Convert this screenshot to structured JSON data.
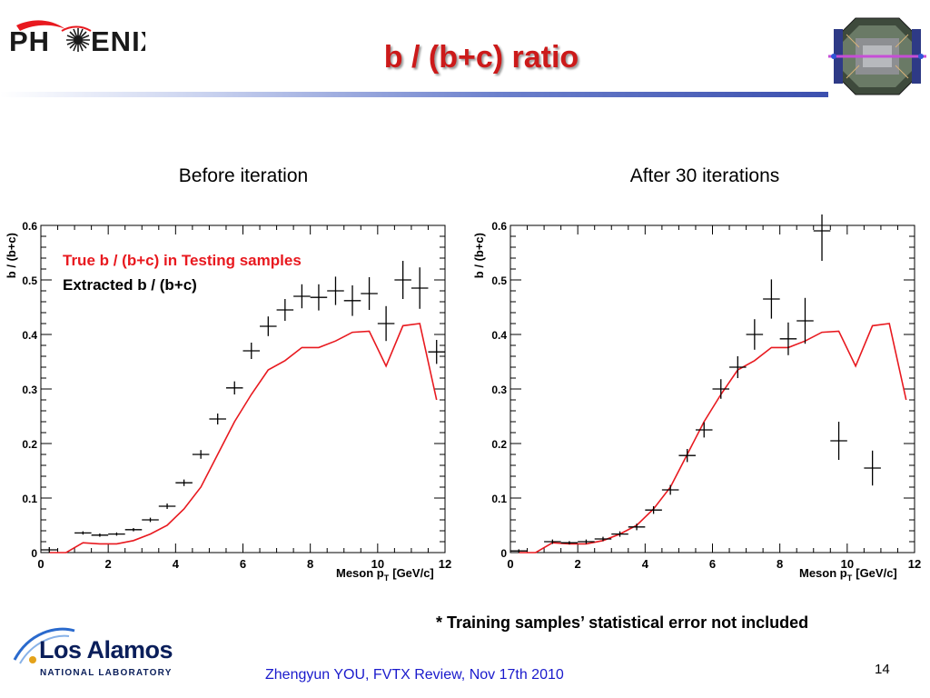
{
  "header": {
    "logo_text_left": "PH",
    "logo_text_right": "ENIX",
    "title": "b / (b+c) ratio"
  },
  "panels": {
    "left_title": "Before iteration",
    "right_title": "After 30 iterations"
  },
  "legend": {
    "true_label": "True b / (b+c) in Testing samples",
    "extracted_label": "Extracted b / (b+c)",
    "true_color": "#e8191f",
    "extracted_color": "#000000"
  },
  "footnote": "* Training samples’ statistical error not included",
  "footer": "Zhengyun YOU, FVTX Review, Nov 17th 2010",
  "page_number": "14",
  "lanl_logo": {
    "name": "Los Alamos",
    "subtitle": "NATIONAL LABORATORY"
  },
  "icons": [
    "phenix-sunburst-icon",
    "detector-image",
    "lanl-logo-icon"
  ],
  "chart_data": [
    {
      "type": "line",
      "panel": "Before iteration",
      "xlabel": "Meson p",
      "xlabel_sub": "T",
      "xlabel_unit": "[GeV/c]",
      "ylabel": "b / (b+c)",
      "xlim": [
        0,
        12
      ],
      "ylim": [
        0,
        0.6
      ],
      "x_ticks": [
        "0",
        "2",
        "4",
        "6",
        "8",
        "10",
        "12"
      ],
      "y_ticks": [
        "0",
        "0.1",
        "0.2",
        "0.3",
        "0.4",
        "0.5",
        "0.6"
      ],
      "grid": false,
      "series": [
        {
          "name": "True b / (b+c) in Testing samples",
          "style": "line",
          "color": "#e8191f",
          "x": [
            0.25,
            0.75,
            1.25,
            1.75,
            2.25,
            2.75,
            3.25,
            3.75,
            4.25,
            4.75,
            5.25,
            5.75,
            6.25,
            6.75,
            7.25,
            7.75,
            8.25,
            8.75,
            9.25,
            9.75,
            10.25,
            10.75,
            11.25,
            11.75
          ],
          "y": [
            0.0,
            0.0,
            0.018,
            0.016,
            0.016,
            0.022,
            0.034,
            0.05,
            0.08,
            0.12,
            0.18,
            0.24,
            0.29,
            0.335,
            0.352,
            0.376,
            0.376,
            0.388,
            0.404,
            0.406,
            0.342,
            0.416,
            0.42,
            0.28
          ]
        },
        {
          "name": "Extracted b / (b+c)",
          "style": "errorbar",
          "color": "#000000",
          "x": [
            0.25,
            1.25,
            1.75,
            2.25,
            2.75,
            3.25,
            3.75,
            4.25,
            4.75,
            5.25,
            5.75,
            6.25,
            6.75,
            7.25,
            7.75,
            8.25,
            8.75,
            9.25,
            9.75,
            10.25,
            10.75,
            11.25,
            11.75
          ],
          "y": [
            0.005,
            0.036,
            0.032,
            0.034,
            0.042,
            0.06,
            0.085,
            0.128,
            0.18,
            0.245,
            0.302,
            0.37,
            0.415,
            0.445,
            0.47,
            0.468,
            0.48,
            0.462,
            0.475,
            0.42,
            0.5,
            0.485,
            0.368
          ],
          "yerr": [
            0.005,
            0.003,
            0.003,
            0.003,
            0.003,
            0.004,
            0.005,
            0.006,
            0.008,
            0.01,
            0.012,
            0.015,
            0.018,
            0.02,
            0.022,
            0.024,
            0.026,
            0.028,
            0.03,
            0.032,
            0.035,
            0.038,
            0.022
          ]
        }
      ]
    },
    {
      "type": "line",
      "panel": "After 30 iterations",
      "xlabel": "Meson p",
      "xlabel_sub": "T",
      "xlabel_unit": "[GeV/c]",
      "ylabel": "b / (b+c)",
      "xlim": [
        0,
        12
      ],
      "ylim": [
        0,
        0.6
      ],
      "x_ticks": [
        "0",
        "2",
        "4",
        "6",
        "8",
        "10",
        "12"
      ],
      "y_ticks": [
        "0",
        "0.1",
        "0.2",
        "0.3",
        "0.4",
        "0.5",
        "0.6"
      ],
      "grid": false,
      "series": [
        {
          "name": "True b / (b+c) in Testing samples",
          "style": "line",
          "color": "#e8191f",
          "x": [
            0.25,
            0.75,
            1.25,
            1.75,
            2.25,
            2.75,
            3.25,
            3.75,
            4.25,
            4.75,
            5.25,
            5.75,
            6.25,
            6.75,
            7.25,
            7.75,
            8.25,
            8.75,
            9.25,
            9.75,
            10.25,
            10.75,
            11.25,
            11.75
          ],
          "y": [
            0.0,
            0.0,
            0.018,
            0.016,
            0.016,
            0.022,
            0.034,
            0.05,
            0.08,
            0.12,
            0.18,
            0.24,
            0.29,
            0.335,
            0.352,
            0.376,
            0.376,
            0.388,
            0.404,
            0.406,
            0.342,
            0.416,
            0.42,
            0.28
          ]
        },
        {
          "name": "Extracted b / (b+c)",
          "style": "errorbar",
          "color": "#000000",
          "x": [
            0.25,
            1.25,
            1.75,
            2.25,
            2.75,
            3.25,
            3.75,
            4.25,
            4.75,
            5.25,
            5.75,
            6.25,
            6.75,
            7.25,
            7.75,
            8.25,
            8.75,
            9.25,
            9.75,
            10.75
          ],
          "y": [
            0.003,
            0.02,
            0.018,
            0.02,
            0.025,
            0.034,
            0.047,
            0.078,
            0.115,
            0.178,
            0.225,
            0.3,
            0.34,
            0.4,
            0.465,
            0.392,
            0.425,
            0.59,
            0.205,
            0.155
          ],
          "yerr": [
            0.003,
            0.004,
            0.003,
            0.004,
            0.004,
            0.005,
            0.006,
            0.007,
            0.009,
            0.012,
            0.014,
            0.018,
            0.02,
            0.028,
            0.036,
            0.03,
            0.042,
            0.055,
            0.035,
            0.032
          ]
        }
      ]
    }
  ]
}
